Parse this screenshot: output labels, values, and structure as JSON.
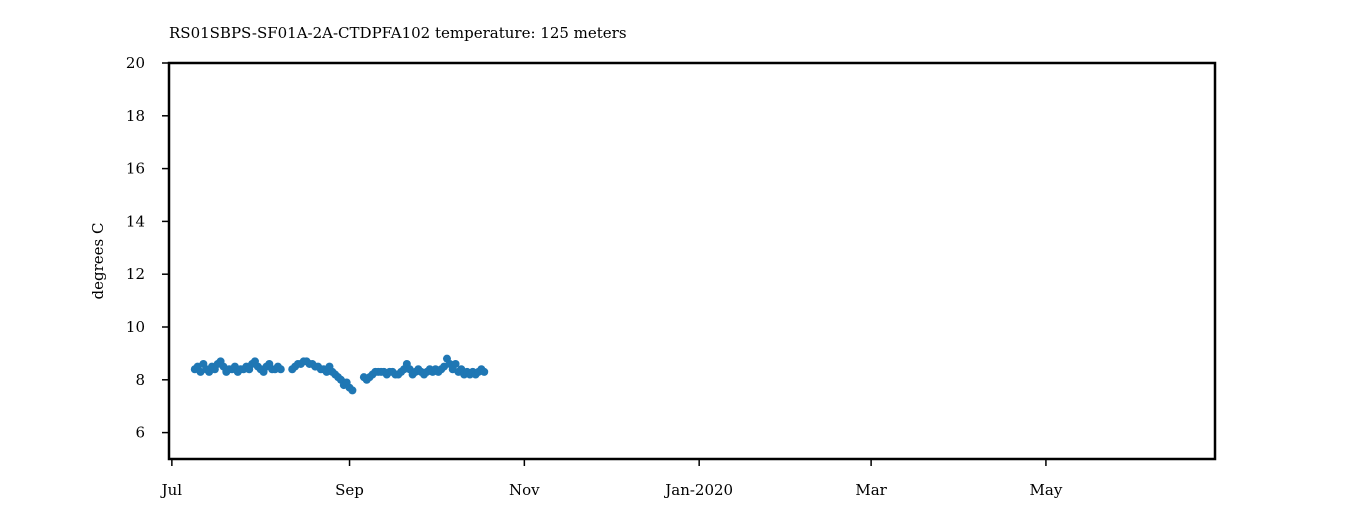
{
  "chart_data": {
    "type": "scatter",
    "title": "RS01SBPS-SF01A-2A-CTDPFA102 temperature: 125 meters",
    "xlabel": "",
    "ylabel": "degrees C",
    "x_axis": {
      "type": "date",
      "range": [
        "2019-06-30",
        "2020-06-29"
      ],
      "ticks": [
        {
          "date": "2019-07-01",
          "label": "Jul"
        },
        {
          "date": "2019-09-01",
          "label": "Sep"
        },
        {
          "date": "2019-11-01",
          "label": "Nov"
        },
        {
          "date": "2020-01-01",
          "label": "Jan-2020"
        },
        {
          "date": "2020-03-01",
          "label": "Mar"
        },
        {
          "date": "2020-05-01",
          "label": "May"
        }
      ]
    },
    "y_axis": {
      "range": [
        5,
        20
      ],
      "ticks": [
        6,
        8,
        10,
        12,
        14,
        16,
        18,
        20
      ]
    },
    "grid": false,
    "series": [
      {
        "color": "#1f77b4",
        "points": [
          [
            "2019-07-09",
            8.4
          ],
          [
            "2019-07-10",
            8.5
          ],
          [
            "2019-07-11",
            8.3
          ],
          [
            "2019-07-12",
            8.6
          ],
          [
            "2019-07-13",
            8.4
          ],
          [
            "2019-07-14",
            8.3
          ],
          [
            "2019-07-15",
            8.5
          ],
          [
            "2019-07-16",
            8.4
          ],
          [
            "2019-07-17",
            8.6
          ],
          [
            "2019-07-18",
            8.7
          ],
          [
            "2019-07-19",
            8.5
          ],
          [
            "2019-07-20",
            8.3
          ],
          [
            "2019-07-21",
            8.4
          ],
          [
            "2019-07-22",
            8.4
          ],
          [
            "2019-07-23",
            8.5
          ],
          [
            "2019-07-24",
            8.3
          ],
          [
            "2019-07-25",
            8.4
          ],
          [
            "2019-07-26",
            8.4
          ],
          [
            "2019-07-27",
            8.5
          ],
          [
            "2019-07-28",
            8.4
          ],
          [
            "2019-07-29",
            8.6
          ],
          [
            "2019-07-30",
            8.7
          ],
          [
            "2019-07-31",
            8.5
          ],
          [
            "2019-08-01",
            8.4
          ],
          [
            "2019-08-02",
            8.3
          ],
          [
            "2019-08-03",
            8.5
          ],
          [
            "2019-08-04",
            8.6
          ],
          [
            "2019-08-05",
            8.4
          ],
          [
            "2019-08-06",
            8.4
          ],
          [
            "2019-08-07",
            8.5
          ],
          [
            "2019-08-08",
            8.4
          ],
          [
            "2019-08-12",
            8.4
          ],
          [
            "2019-08-13",
            8.5
          ],
          [
            "2019-08-14",
            8.6
          ],
          [
            "2019-08-15",
            8.6
          ],
          [
            "2019-08-16",
            8.7
          ],
          [
            "2019-08-17",
            8.7
          ],
          [
            "2019-08-18",
            8.6
          ],
          [
            "2019-08-19",
            8.6
          ],
          [
            "2019-08-20",
            8.5
          ],
          [
            "2019-08-21",
            8.5
          ],
          [
            "2019-08-22",
            8.4
          ],
          [
            "2019-08-23",
            8.4
          ],
          [
            "2019-08-24",
            8.3
          ],
          [
            "2019-08-25",
            8.5
          ],
          [
            "2019-08-26",
            8.3
          ],
          [
            "2019-08-27",
            8.2
          ],
          [
            "2019-08-28",
            8.1
          ],
          [
            "2019-08-29",
            8.0
          ],
          [
            "2019-08-30",
            7.8
          ],
          [
            "2019-08-31",
            7.9
          ],
          [
            "2019-09-01",
            7.7
          ],
          [
            "2019-09-02",
            7.6
          ],
          [
            "2019-09-06",
            8.1
          ],
          [
            "2019-09-07",
            8.0
          ],
          [
            "2019-09-08",
            8.1
          ],
          [
            "2019-09-09",
            8.2
          ],
          [
            "2019-09-10",
            8.3
          ],
          [
            "2019-09-11",
            8.3
          ],
          [
            "2019-09-12",
            8.3
          ],
          [
            "2019-09-13",
            8.3
          ],
          [
            "2019-09-14",
            8.2
          ],
          [
            "2019-09-15",
            8.3
          ],
          [
            "2019-09-16",
            8.3
          ],
          [
            "2019-09-17",
            8.2
          ],
          [
            "2019-09-18",
            8.2
          ],
          [
            "2019-09-19",
            8.3
          ],
          [
            "2019-09-20",
            8.4
          ],
          [
            "2019-09-21",
            8.6
          ],
          [
            "2019-09-22",
            8.4
          ],
          [
            "2019-09-23",
            8.2
          ],
          [
            "2019-09-24",
            8.3
          ],
          [
            "2019-09-25",
            8.4
          ],
          [
            "2019-09-26",
            8.3
          ],
          [
            "2019-09-27",
            8.2
          ],
          [
            "2019-09-28",
            8.3
          ],
          [
            "2019-09-29",
            8.4
          ],
          [
            "2019-09-30",
            8.3
          ],
          [
            "2019-10-01",
            8.4
          ],
          [
            "2019-10-02",
            8.3
          ],
          [
            "2019-10-03",
            8.4
          ],
          [
            "2019-10-04",
            8.5
          ],
          [
            "2019-10-05",
            8.8
          ],
          [
            "2019-10-06",
            8.6
          ],
          [
            "2019-10-07",
            8.4
          ],
          [
            "2019-10-08",
            8.6
          ],
          [
            "2019-10-09",
            8.3
          ],
          [
            "2019-10-10",
            8.4
          ],
          [
            "2019-10-11",
            8.2
          ],
          [
            "2019-10-12",
            8.3
          ],
          [
            "2019-10-13",
            8.2
          ],
          [
            "2019-10-14",
            8.3
          ],
          [
            "2019-10-15",
            8.2
          ],
          [
            "2019-10-16",
            8.3
          ],
          [
            "2019-10-17",
            8.4
          ],
          [
            "2019-10-18",
            8.3
          ]
        ]
      }
    ]
  }
}
